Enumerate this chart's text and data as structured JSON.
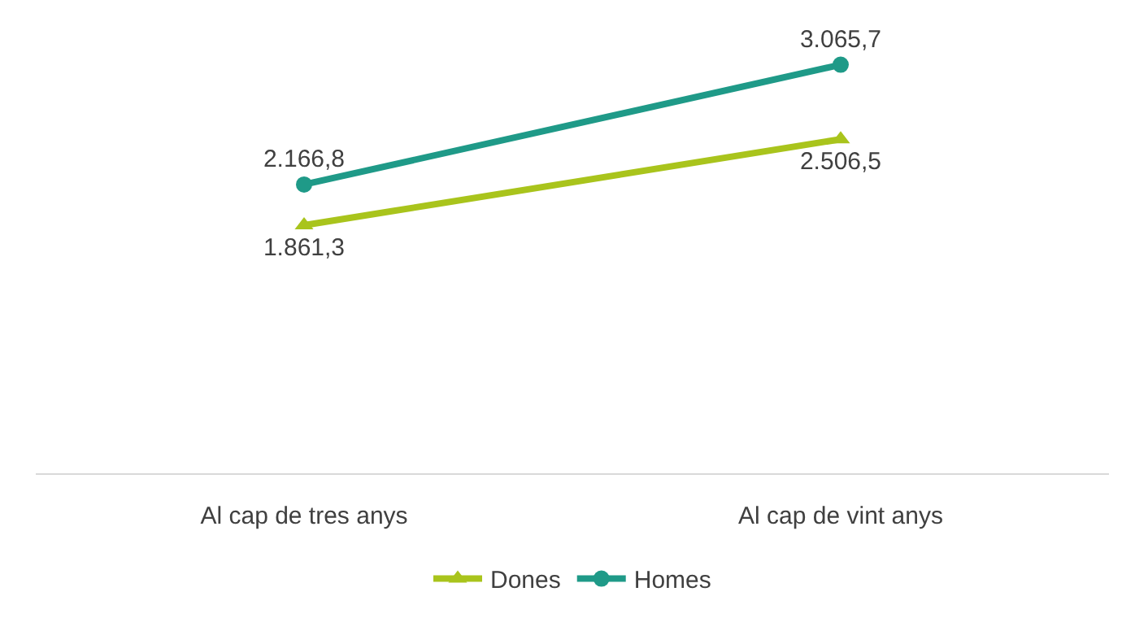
{
  "chart_data": {
    "type": "line",
    "categories": [
      "Al cap de tres anys",
      "Al cap de vint anys"
    ],
    "legend": "bottom",
    "tick_labels": "x",
    "series": [
      {
        "name": "Dones",
        "color": "#a9c41c",
        "values": [
          1861.3,
          2506.5
        ],
        "value_labels": [
          "1.861,3",
          "2.506,5"
        ],
        "marker": "triangle"
      },
      {
        "name": "Homes",
        "color": "#1f9a88",
        "values": [
          2166.8,
          3065.7
        ],
        "value_labels": [
          "2.166,8",
          "3.065,7"
        ],
        "marker": "circle"
      }
    ]
  }
}
